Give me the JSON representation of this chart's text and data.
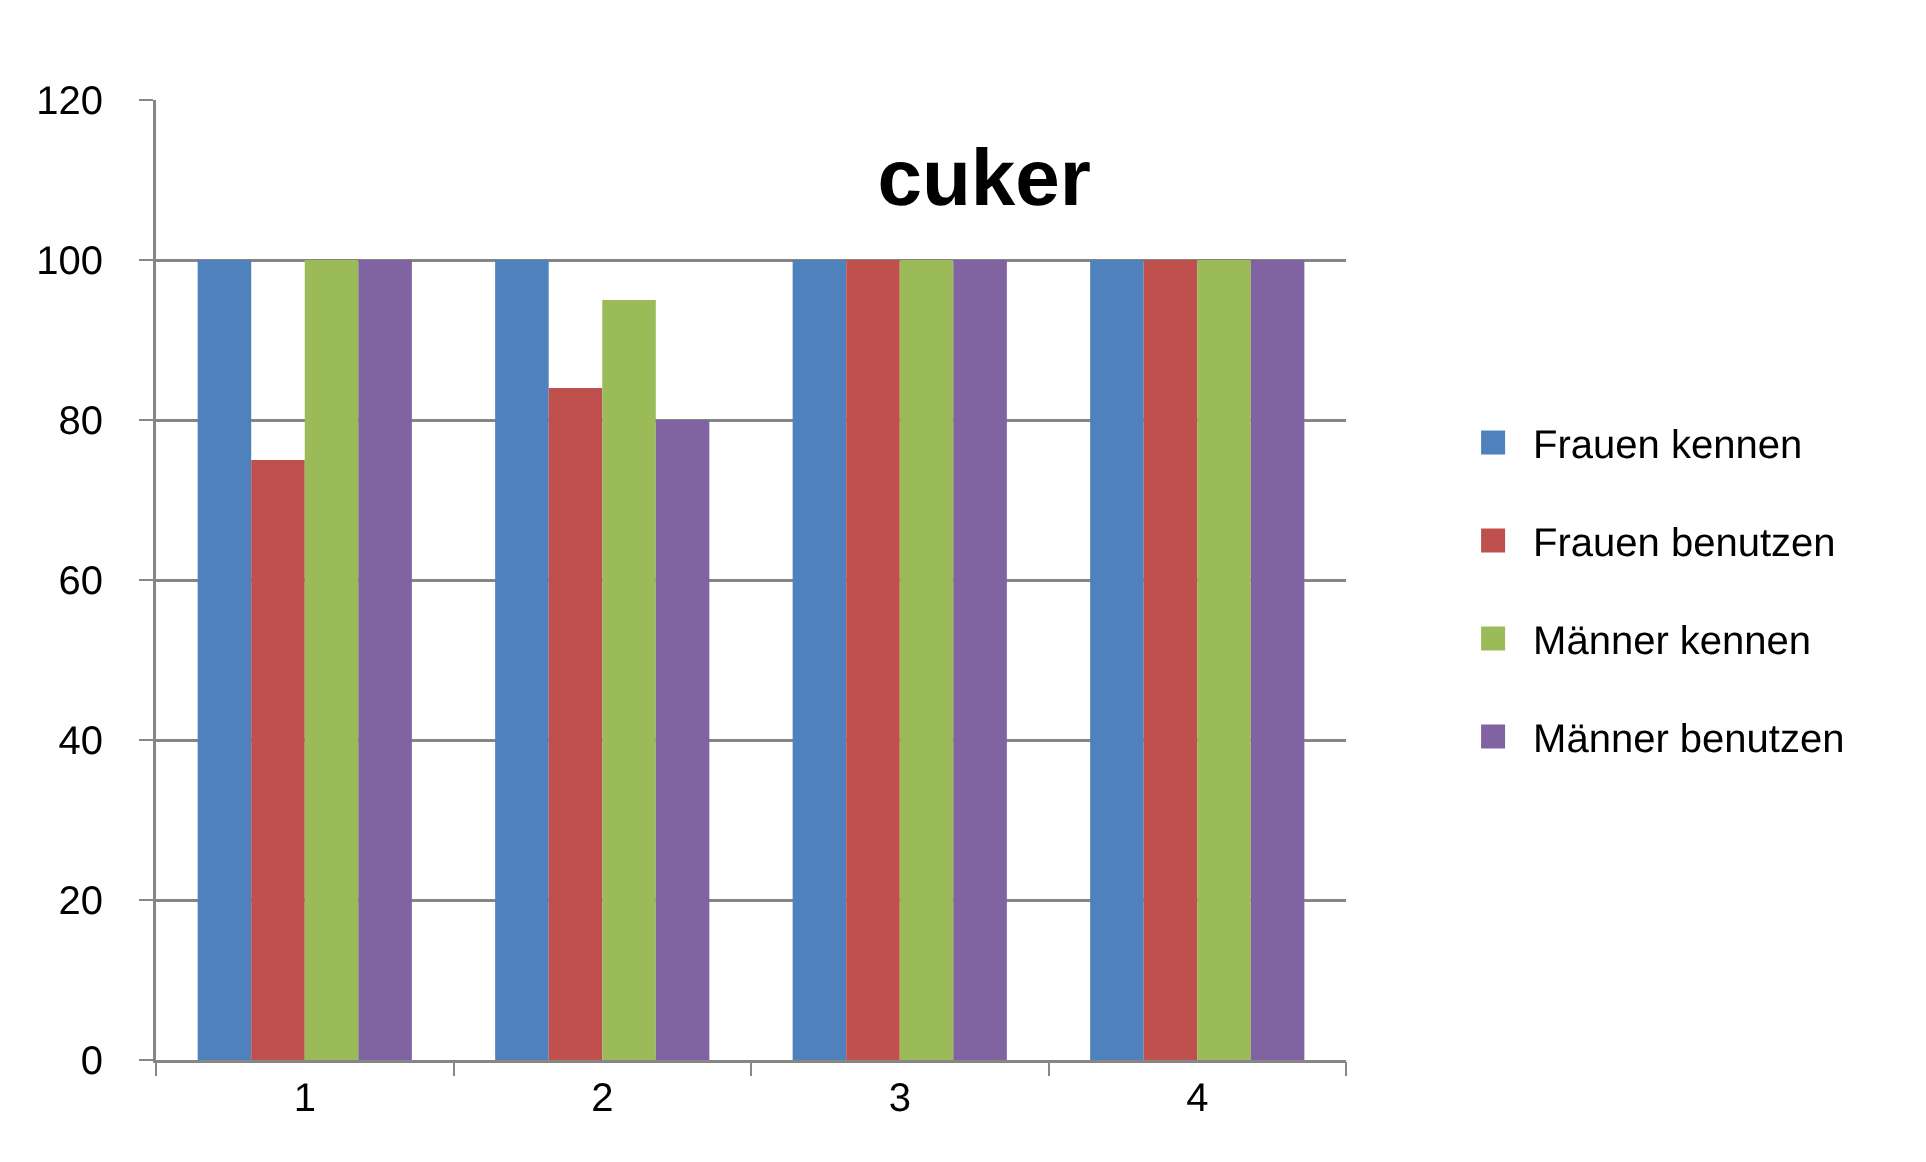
{
  "chart_data": {
    "type": "bar",
    "title": "cuker",
    "categories": [
      "1",
      "2",
      "3",
      "4"
    ],
    "series": [
      {
        "name": "Frauen kennen",
        "color": "#4f81bd",
        "values": [
          100,
          100,
          100,
          100
        ]
      },
      {
        "name": "Frauen benutzen",
        "color": "#c0504d",
        "values": [
          75,
          84,
          100,
          100
        ]
      },
      {
        "name": "Männer kennen",
        "color": "#9bbb59",
        "values": [
          100,
          95,
          100,
          100
        ]
      },
      {
        "name": "Männer benutzen",
        "color": "#8064a2",
        "values": [
          100,
          80,
          100,
          100
        ]
      }
    ],
    "ylim": [
      0,
      120
    ],
    "yticks": [
      0,
      20,
      40,
      60,
      80,
      100,
      120
    ],
    "grid": "y",
    "legend": "right"
  }
}
